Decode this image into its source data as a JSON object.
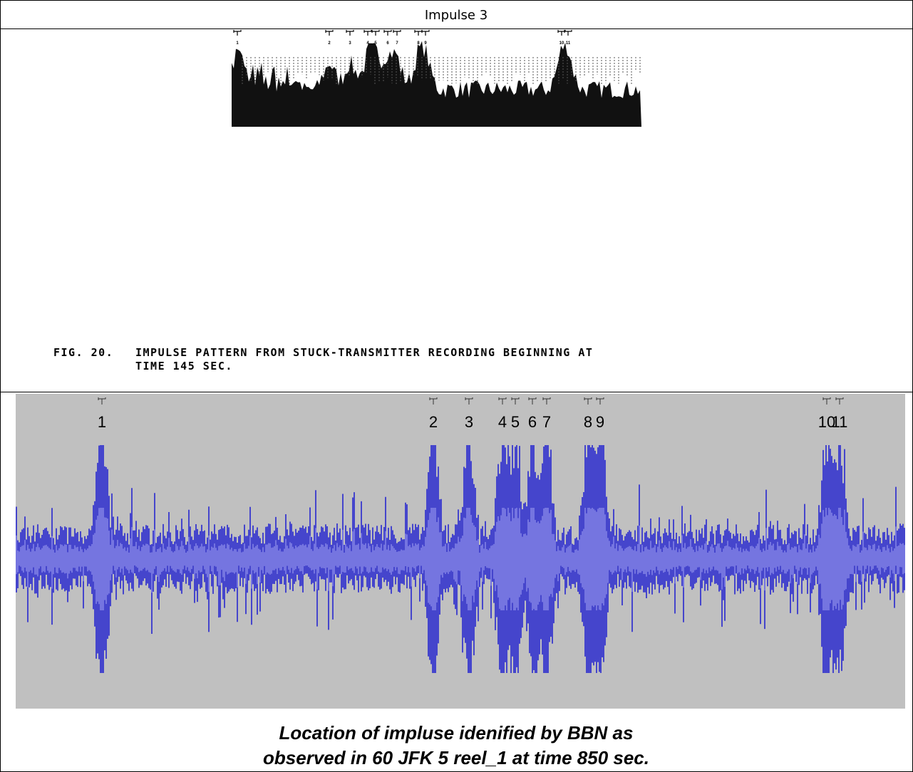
{
  "header": {
    "title": "Impulse 3"
  },
  "figure": {
    "markers": [
      "1",
      "2",
      "3",
      "4",
      "5",
      "6",
      "7",
      "8",
      "9",
      "10",
      "11"
    ],
    "caption": [
      "FIG. 20.",
      "IMPULSE PATTERN FROM STUCK-TRANSMITTER RECORDING BEGINNING AT",
      "TIME 145 SEC."
    ]
  },
  "recording": {
    "markers": [
      "1",
      "2",
      "3",
      "4",
      "5",
      "6",
      "7",
      "8",
      "9",
      "10",
      "11"
    ],
    "caption": [
      "Location of impluse idenified by BBN as",
      "observed in 60 JFK 5 reel_1 at time 850 sec."
    ]
  }
}
